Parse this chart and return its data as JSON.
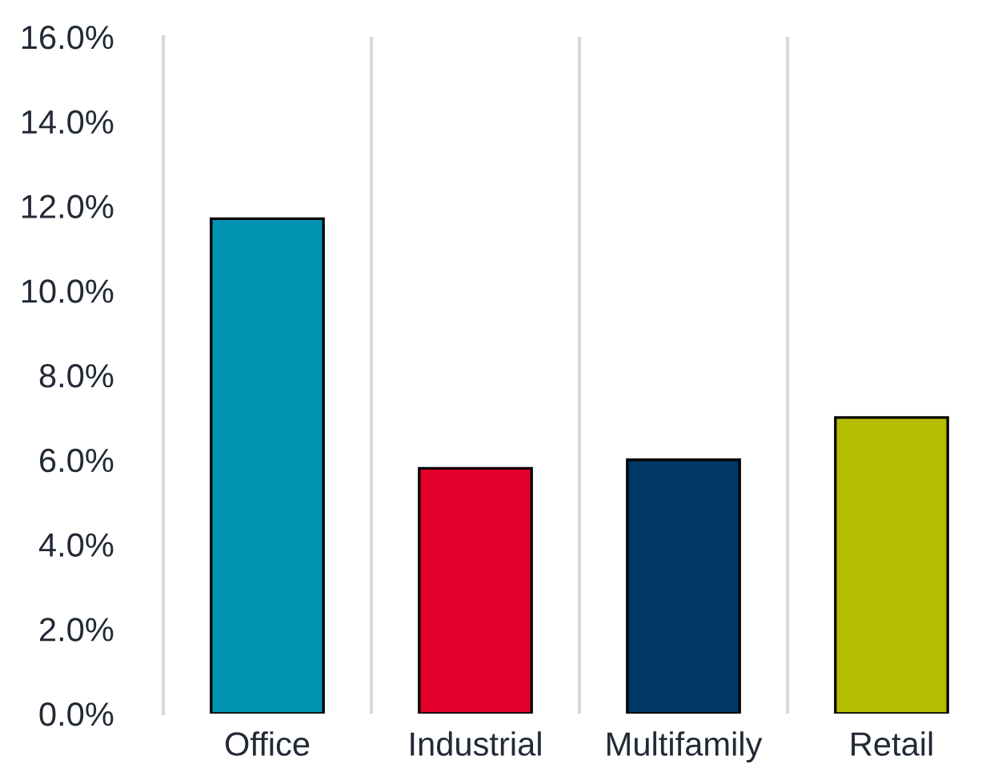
{
  "chart_data": {
    "type": "bar",
    "categories": [
      "Office",
      "Industrial",
      "Multifamily",
      "Retail"
    ],
    "values": [
      11.7,
      5.8,
      6.0,
      7.0
    ],
    "colors": [
      "#0093b2",
      "#e4002b",
      "#003865",
      "#b5bd00"
    ],
    "ylim": [
      0,
      16
    ],
    "yticks": [
      {
        "value": 0,
        "label": "0.0%"
      },
      {
        "value": 2,
        "label": "2.0%"
      },
      {
        "value": 4,
        "label": "4.0%"
      },
      {
        "value": 6,
        "label": "6.0%"
      },
      {
        "value": 8,
        "label": "8.0%"
      },
      {
        "value": 10,
        "label": "10.0%"
      },
      {
        "value": 12,
        "label": "12.0%"
      },
      {
        "value": 14,
        "label": "14.0%"
      },
      {
        "value": 16,
        "label": "16.0%"
      }
    ],
    "grid": "x"
  }
}
